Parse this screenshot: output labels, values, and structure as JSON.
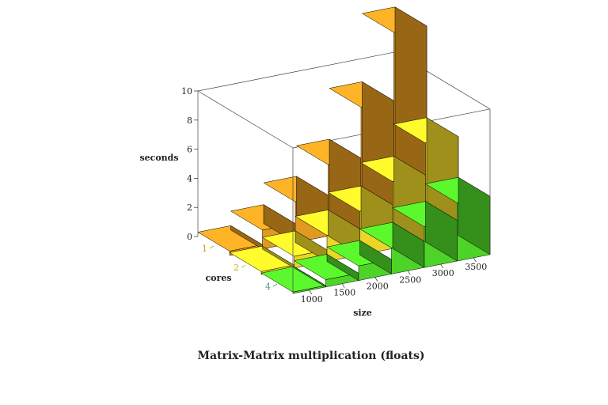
{
  "chart_data": {
    "type": "bar3d",
    "title": "Matrix-Matrix multiplication (floats)",
    "zlabel": "seconds",
    "ylabel": "cores",
    "xlabel": "size",
    "x_ticks": [
      "1000",
      "1500",
      "2000",
      "2500",
      "3000",
      "3500"
    ],
    "y_ticks": [
      "1",
      "2",
      "4"
    ],
    "z_ticks": [
      "0",
      "2",
      "4",
      "6",
      "8",
      "10"
    ],
    "zlim": [
      0,
      10
    ],
    "series": [
      {
        "cores": "1",
        "color": "#f5a623",
        "tick_color": "#c8a000",
        "values": [
          0.3,
          1.3,
          2.8,
          4.9,
          8.4,
          13.1
        ]
      },
      {
        "cores": "2",
        "color": "#ffe82a",
        "tick_color": "#b8b800",
        "values": [
          0.2,
          0.8,
          1.8,
          3.0,
          4.6,
          6.8
        ]
      },
      {
        "cores": "4",
        "color": "#55e62b",
        "tick_color": "#3f9f7f",
        "values": [
          0.1,
          0.5,
          1.0,
          1.8,
          2.8,
          4.0
        ]
      }
    ]
  }
}
